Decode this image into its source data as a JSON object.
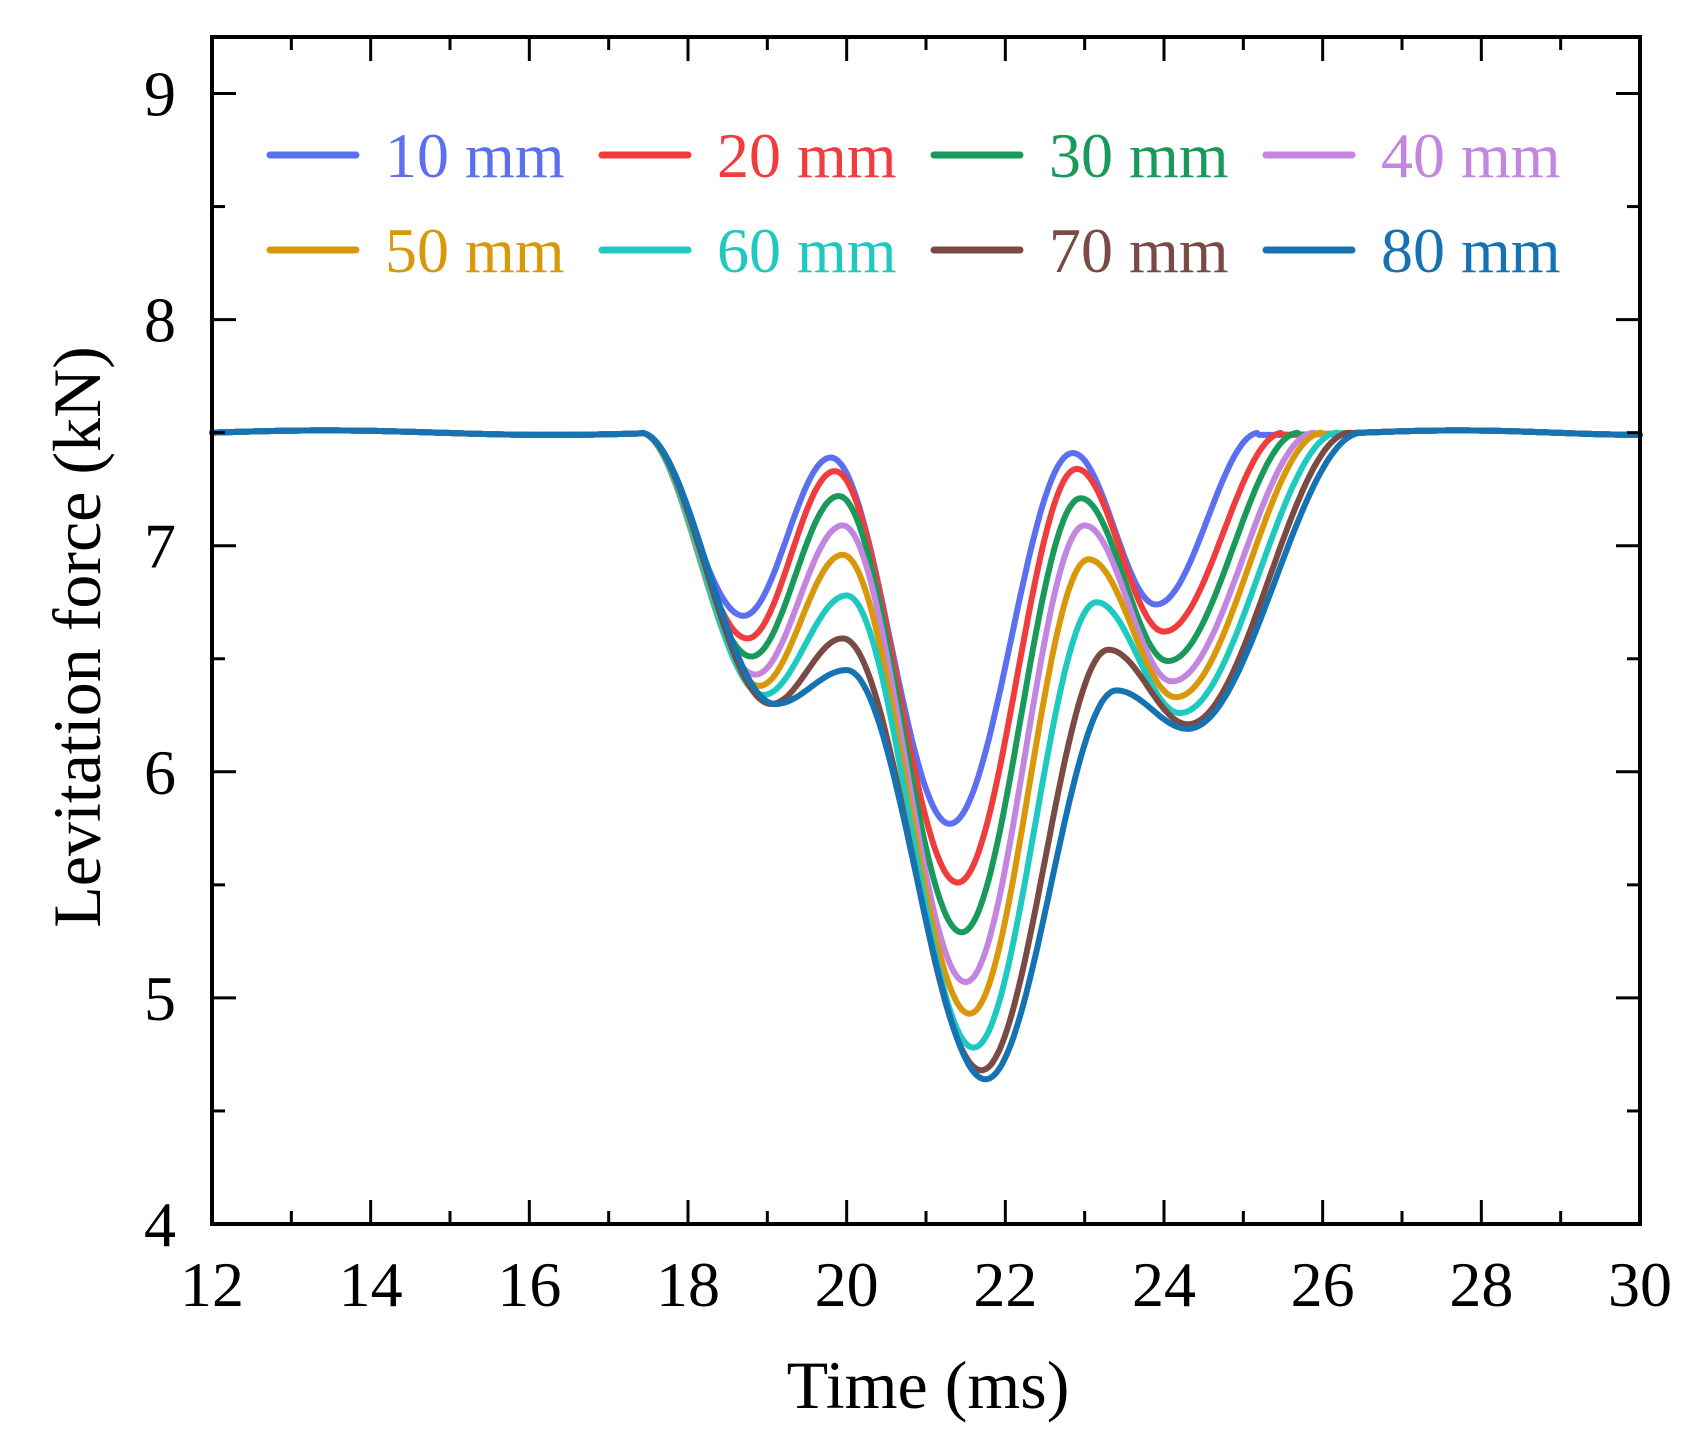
{
  "chart_data": {
    "type": "line",
    "xlabel": "Time (ms)",
    "ylabel": "Levitation force (kN)",
    "xlim": [
      12,
      30
    ],
    "ylim": [
      4,
      9.25
    ],
    "x_ticks": [
      12,
      14,
      16,
      18,
      20,
      22,
      24,
      26,
      28,
      30
    ],
    "y_ticks": [
      4,
      5,
      6,
      7,
      8,
      9
    ],
    "x_minor_step": 1,
    "y_minor_step": 0.5,
    "legend_position": "top",
    "baseline": 7.5,
    "series": [
      {
        "name": "10 mm",
        "color": "#5b6ff0",
        "points": [
          [
            17.4,
            7.5
          ],
          [
            18.7,
            6.69
          ],
          [
            19.8,
            7.39
          ],
          [
            21.3,
            5.77
          ],
          [
            22.85,
            7.41
          ],
          [
            23.9,
            6.74
          ],
          [
            25.2,
            7.5
          ]
        ]
      },
      {
        "name": "20 mm",
        "color": "#f03c3c",
        "points": [
          [
            17.4,
            7.5
          ],
          [
            18.75,
            6.59
          ],
          [
            19.85,
            7.33
          ],
          [
            21.4,
            5.51
          ],
          [
            22.9,
            7.34
          ],
          [
            24.0,
            6.62
          ],
          [
            25.5,
            7.5
          ]
        ]
      },
      {
        "name": "30 mm",
        "color": "#1a9a5a",
        "points": [
          [
            17.4,
            7.5
          ],
          [
            18.8,
            6.51
          ],
          [
            19.9,
            7.22
          ],
          [
            21.45,
            5.29
          ],
          [
            22.95,
            7.21
          ],
          [
            24.05,
            6.49
          ],
          [
            25.7,
            7.5
          ]
        ]
      },
      {
        "name": "40 mm",
        "color": "#c386e0",
        "points": [
          [
            17.4,
            7.5
          ],
          [
            18.85,
            6.43
          ],
          [
            19.95,
            7.09
          ],
          [
            21.5,
            5.07
          ],
          [
            23.0,
            7.09
          ],
          [
            24.1,
            6.4
          ],
          [
            25.9,
            7.5
          ]
        ]
      },
      {
        "name": "50 mm",
        "color": "#d9970a",
        "points": [
          [
            17.4,
            7.5
          ],
          [
            18.9,
            6.38
          ],
          [
            19.95,
            6.96
          ],
          [
            21.55,
            4.93
          ],
          [
            23.05,
            6.94
          ],
          [
            24.15,
            6.33
          ],
          [
            26.0,
            7.5
          ]
        ]
      },
      {
        "name": "60 mm",
        "color": "#1ec9c0",
        "points": [
          [
            17.4,
            7.5
          ],
          [
            18.95,
            6.34
          ],
          [
            20.0,
            6.78
          ],
          [
            21.6,
            4.78
          ],
          [
            23.15,
            6.75
          ],
          [
            24.2,
            6.26
          ],
          [
            26.2,
            7.5
          ]
        ]
      },
      {
        "name": "70 mm",
        "color": "#7a4a45",
        "points": [
          [
            17.4,
            7.5
          ],
          [
            19.05,
            6.3
          ],
          [
            19.95,
            6.59
          ],
          [
            21.7,
            4.68
          ],
          [
            23.3,
            6.54
          ],
          [
            24.3,
            6.21
          ],
          [
            26.35,
            7.5
          ]
        ]
      },
      {
        "name": "80 mm",
        "color": "#1573b3",
        "points": [
          [
            17.4,
            7.5
          ],
          [
            19.1,
            6.3
          ],
          [
            20.0,
            6.45
          ],
          [
            21.75,
            4.64
          ],
          [
            23.4,
            6.36
          ],
          [
            24.3,
            6.19
          ],
          [
            26.5,
            7.5
          ]
        ]
      }
    ]
  }
}
